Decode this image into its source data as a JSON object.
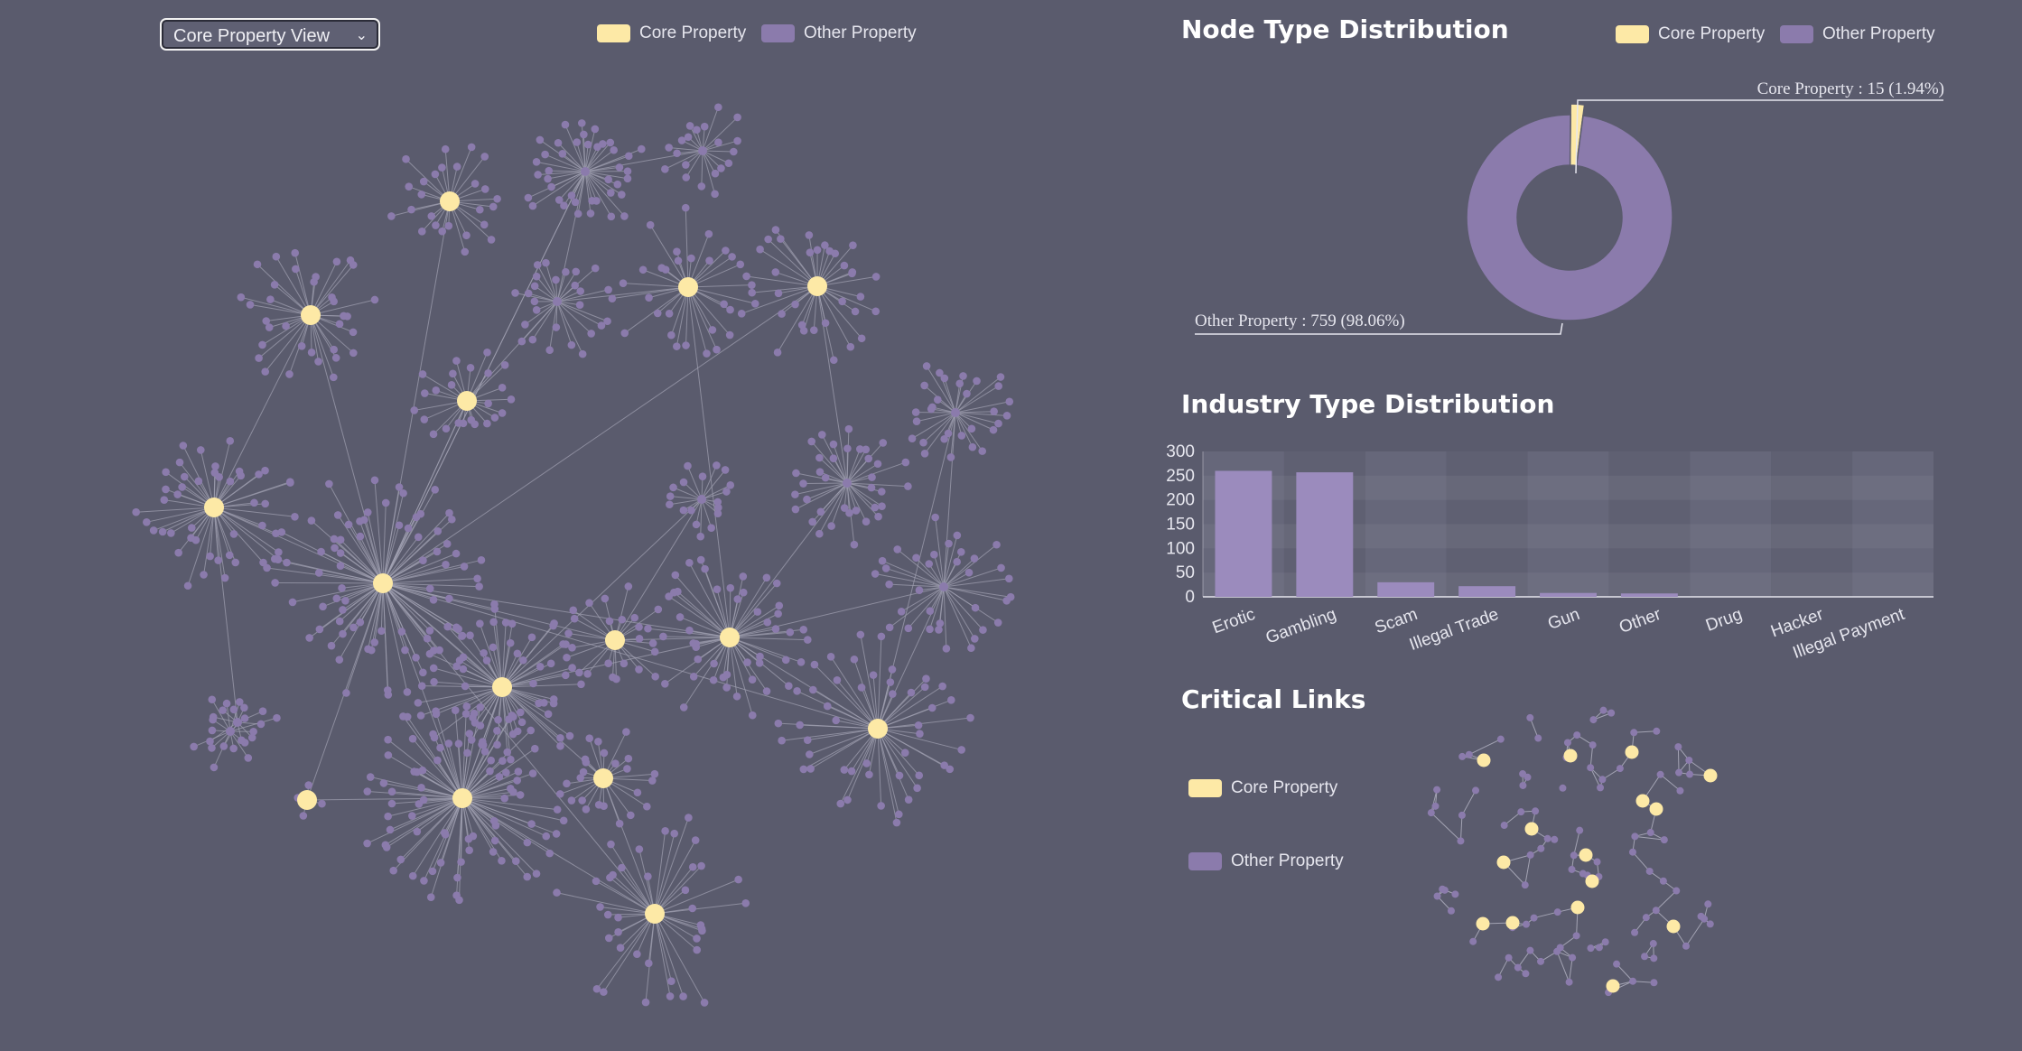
{
  "view_select": {
    "value": "Core Property View",
    "chevron_icon": "chevron-down-icon"
  },
  "colors": {
    "background": "#5a5b6d",
    "core": "#fde9a6",
    "other": "#8b7bac",
    "bar": "#9b8bbd",
    "link": "#a3a3b3"
  },
  "legend_main": {
    "core": "Core Property",
    "other": "Other Property"
  },
  "node_type": {
    "title": "Node Type Distribution",
    "legend": {
      "core": "Core Property",
      "other": "Other Property"
    },
    "core_label": "Core Property : 15 (1.94%)",
    "other_label": "Other Property : 759 (98.06%)"
  },
  "industry": {
    "title": "Industry Type Distribution"
  },
  "critical": {
    "title": "Critical Links",
    "legend": {
      "core": "Core Property",
      "other": "Other Property"
    }
  },
  "chart_data": [
    {
      "type": "pie",
      "title": "Node Type Distribution",
      "slices": [
        {
          "name": "Core Property",
          "value": 15,
          "percent": 1.94
        },
        {
          "name": "Other Property",
          "value": 759,
          "percent": 98.06
        }
      ],
      "donut": true,
      "legend_position": "top-right"
    },
    {
      "type": "bar",
      "title": "Industry Type Distribution",
      "categories": [
        "Erotic",
        "Gambling",
        "Scam",
        "Illegal Trade",
        "Gun",
        "Other",
        "Drug",
        "Hacker",
        "Illegal Payment"
      ],
      "values": [
        260,
        257,
        30,
        22,
        8,
        7,
        0,
        0,
        0
      ],
      "yticks": [
        0,
        50,
        100,
        150,
        200,
        250,
        300
      ],
      "ylim": [
        0,
        300
      ],
      "xlabel": "",
      "ylabel": ""
    }
  ]
}
